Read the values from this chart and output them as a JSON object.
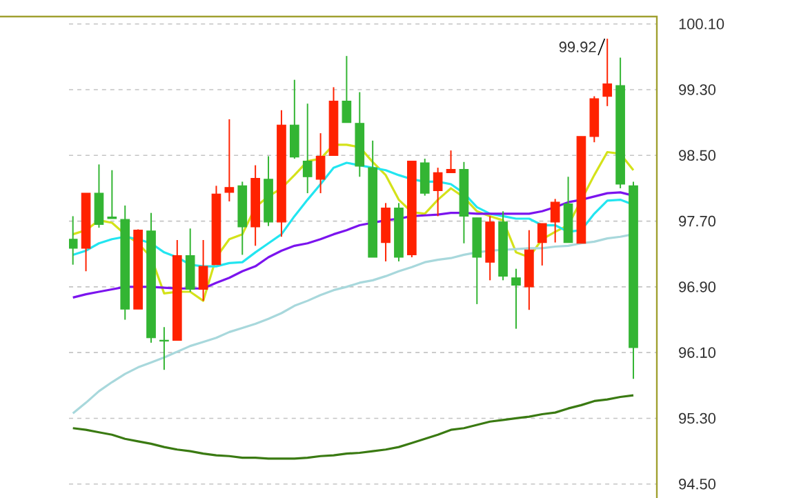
{
  "chart_data": {
    "type": "candlestick",
    "categories": [
      null,
      null,
      null,
      null,
      null,
      null,
      null,
      null,
      null,
      null,
      null,
      null,
      null,
      null,
      null,
      null,
      null,
      null,
      null,
      null,
      null,
      null,
      null,
      null,
      null,
      null,
      null,
      null,
      null,
      null,
      null,
      null,
      null,
      null,
      null,
      null,
      null,
      null,
      null,
      null,
      null,
      null,
      null,
      null
    ],
    "ohlc": [
      [
        97.48,
        97.76,
        97.17,
        97.37
      ],
      [
        97.37,
        98.04,
        97.09,
        98.04
      ],
      [
        98.04,
        98.39,
        97.62,
        97.66
      ],
      [
        97.75,
        98.32,
        97.73,
        97.73
      ],
      [
        97.72,
        97.89,
        96.5,
        96.63
      ],
      [
        96.63,
        97.6,
        96.63,
        97.59
      ],
      [
        97.58,
        97.8,
        96.22,
        96.28
      ],
      [
        96.25,
        96.41,
        95.89,
        96.24
      ],
      [
        96.25,
        97.47,
        96.25,
        97.28
      ],
      [
        97.28,
        97.61,
        96.84,
        96.87
      ],
      [
        96.87,
        97.47,
        96.73,
        97.15
      ],
      [
        97.17,
        98.13,
        97.17,
        98.03
      ],
      [
        98.05,
        98.94,
        97.94,
        98.11
      ],
      [
        98.13,
        98.18,
        97.29,
        97.63
      ],
      [
        97.63,
        98.38,
        97.4,
        98.22
      ],
      [
        98.21,
        98.49,
        97.64,
        97.69
      ],
      [
        97.69,
        99.05,
        97.51,
        98.87
      ],
      [
        98.87,
        99.42,
        98.46,
        98.48
      ],
      [
        98.43,
        99.13,
        98.04,
        98.24
      ],
      [
        98.21,
        98.77,
        98.04,
        98.49
      ],
      [
        98.5,
        99.33,
        98.5,
        99.16
      ],
      [
        99.16,
        99.71,
        98.9,
        98.9
      ],
      [
        98.89,
        99.27,
        98.24,
        98.37
      ],
      [
        98.35,
        98.68,
        97.26,
        97.26
      ],
      [
        97.44,
        97.92,
        97.21,
        97.86
      ],
      [
        97.86,
        97.92,
        97.21,
        97.26
      ],
      [
        97.29,
        98.43,
        97.26,
        98.43
      ],
      [
        98.41,
        98.46,
        98.01,
        98.04
      ],
      [
        98.07,
        98.35,
        97.76,
        98.29
      ],
      [
        98.29,
        98.56,
        98.29,
        98.33
      ],
      [
        98.33,
        98.42,
        97.43,
        97.76
      ],
      [
        97.74,
        97.74,
        96.69,
        97.26
      ],
      [
        97.2,
        97.76,
        96.98,
        97.69
      ],
      [
        97.69,
        97.82,
        96.98,
        97.03
      ],
      [
        97.01,
        97.12,
        96.39,
        96.92
      ],
      [
        96.9,
        97.59,
        96.62,
        97.35
      ],
      [
        97.44,
        97.67,
        97.16,
        97.67
      ],
      [
        97.69,
        97.97,
        97.44,
        97.93
      ],
      [
        97.91,
        98.24,
        97.44,
        97.44
      ],
      [
        97.43,
        98.73,
        97.43,
        98.73
      ],
      [
        98.73,
        99.22,
        98.66,
        99.19
      ],
      [
        99.22,
        99.92,
        99.1,
        99.37
      ],
      [
        99.35,
        99.69,
        98.1,
        98.15
      ],
      [
        98.13,
        98.18,
        95.78,
        96.16
      ]
    ],
    "colors": [
      "#33b533",
      "#ff2200",
      "#33b533",
      "#33b533",
      "#33b533",
      "#ff2200",
      "#33b533",
      "#33b533",
      "#ff2200",
      "#33b533",
      "#ff2200",
      "#ff2200",
      "#ff2200",
      "#33b533",
      "#ff2200",
      "#33b533",
      "#ff2200",
      "#33b533",
      "#33b533",
      "#ff2200",
      "#ff2200",
      "#33b533",
      "#33b533",
      "#33b533",
      "#ff2200",
      "#33b533",
      "#ff2200",
      "#33b533",
      "#ff2200",
      "#ff2200",
      "#33b533",
      "#33b533",
      "#ff2200",
      "#33b533",
      "#33b533",
      "#ff2200",
      "#ff2200",
      "#ff2200",
      "#33b533",
      "#ff2200",
      "#ff2200",
      "#ff2200",
      "#33b533",
      "#33b533"
    ],
    "series": [
      {
        "type": "line",
        "color": "#d4e21a",
        "values": [
          97.54,
          97.59,
          97.71,
          97.68,
          97.54,
          97.43,
          97.26,
          96.82,
          96.84,
          96.84,
          96.73,
          97.26,
          97.48,
          97.54,
          97.87,
          98.0,
          98.1,
          98.26,
          98.43,
          98.46,
          98.63,
          98.63,
          98.6,
          98.42,
          98.26,
          97.96,
          97.81,
          97.79,
          97.96,
          98.1,
          97.99,
          97.82,
          97.76,
          97.71,
          97.32,
          97.26,
          97.48,
          97.57,
          97.65,
          null,
          98.26,
          98.54,
          98.52,
          98.32
        ]
      },
      {
        "type": "line",
        "color": "#22e5f0",
        "values": [
          97.29,
          97.34,
          97.43,
          97.48,
          97.51,
          97.48,
          97.43,
          97.32,
          97.26,
          97.17,
          97.15,
          97.15,
          97.19,
          97.2,
          97.32,
          97.43,
          97.54,
          97.76,
          97.96,
          98.15,
          98.35,
          98.41,
          98.38,
          98.35,
          98.32,
          98.26,
          98.21,
          98.18,
          98.18,
          98.15,
          98.04,
          97.87,
          97.79,
          97.76,
          97.73,
          97.73,
          97.65,
          97.65,
          97.57,
          97.59,
          97.79,
          97.95,
          97.96,
          97.9
        ]
      },
      {
        "type": "line",
        "color": "#7b14ee",
        "values": [
          96.77,
          96.81,
          96.84,
          96.87,
          96.9,
          96.9,
          96.9,
          96.89,
          96.88,
          96.88,
          96.88,
          96.95,
          97.01,
          97.09,
          97.15,
          97.26,
          97.34,
          97.4,
          97.43,
          97.48,
          97.54,
          97.59,
          97.65,
          97.68,
          97.71,
          97.73,
          97.76,
          97.77,
          97.78,
          97.8,
          97.8,
          97.79,
          97.79,
          97.79,
          97.79,
          97.79,
          97.82,
          97.87,
          97.93,
          97.96,
          98.0,
          98.04,
          98.05,
          98.01
        ]
      },
      {
        "type": "line",
        "color": "#a8d8dc",
        "values": [
          95.36,
          95.49,
          95.63,
          95.74,
          95.84,
          95.92,
          95.98,
          96.04,
          96.11,
          96.18,
          96.23,
          96.28,
          96.35,
          96.4,
          96.45,
          96.51,
          96.58,
          96.67,
          96.73,
          96.8,
          96.86,
          96.9,
          96.95,
          96.98,
          97.03,
          97.09,
          97.14,
          97.2,
          97.23,
          97.25,
          97.29,
          97.32,
          97.34,
          97.35,
          97.36,
          97.37,
          97.37,
          97.39,
          97.4,
          97.43,
          97.45,
          97.49,
          97.51,
          97.54
        ]
      },
      {
        "type": "line",
        "color": "#3a7a12",
        "values": [
          95.18,
          95.16,
          95.13,
          95.1,
          95.05,
          95.02,
          94.99,
          94.95,
          94.92,
          94.9,
          94.87,
          94.85,
          94.84,
          94.82,
          94.82,
          94.81,
          94.81,
          94.81,
          94.82,
          94.84,
          94.85,
          94.87,
          94.88,
          94.9,
          94.92,
          94.95,
          95.0,
          95.05,
          95.1,
          95.16,
          95.18,
          95.22,
          95.26,
          95.28,
          95.3,
          95.32,
          95.35,
          95.37,
          95.42,
          95.46,
          95.51,
          95.53,
          95.56,
          95.58
        ]
      }
    ],
    "ylim": [
      94.33,
      100.19
    ],
    "yticks": [
      {
        "value": 94.5,
        "label": "94.50"
      },
      {
        "value": 95.3,
        "label": "95.30"
      },
      {
        "value": 96.1,
        "label": "96.10"
      },
      {
        "value": 96.9,
        "label": "96.90"
      },
      {
        "value": 97.7,
        "label": "97.70"
      },
      {
        "value": 98.5,
        "label": "98.50"
      },
      {
        "value": 99.3,
        "label": "99.30"
      },
      {
        "value": 100.1,
        "label": "100.10"
      }
    ],
    "grid": "y",
    "tick_labels": "y",
    "annotations": [
      "99.92"
    ]
  }
}
